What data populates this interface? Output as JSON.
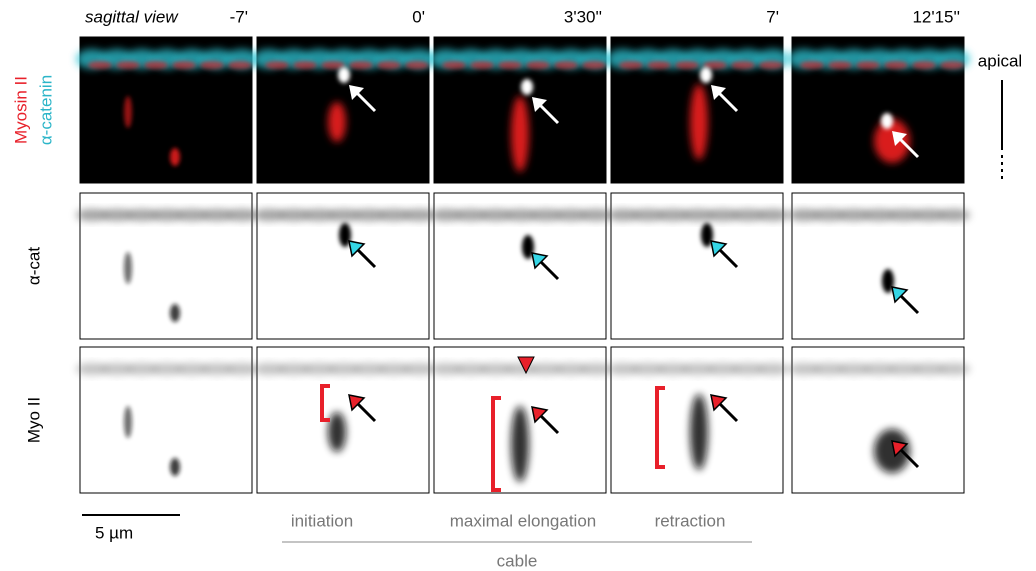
{
  "header": {
    "title": "sagittal view",
    "timepoints": [
      "-7'",
      "0'",
      "3'30''",
      "7'",
      "12'15''"
    ]
  },
  "row_labels": [
    "Myosin II",
    "α-catenin",
    "α-cat",
    "Myo II"
  ],
  "side_label": "apical",
  "scale_bar": "5 µm",
  "phases": [
    "initiation",
    "maximal elongation",
    "retraction"
  ],
  "group_label": "cable"
}
